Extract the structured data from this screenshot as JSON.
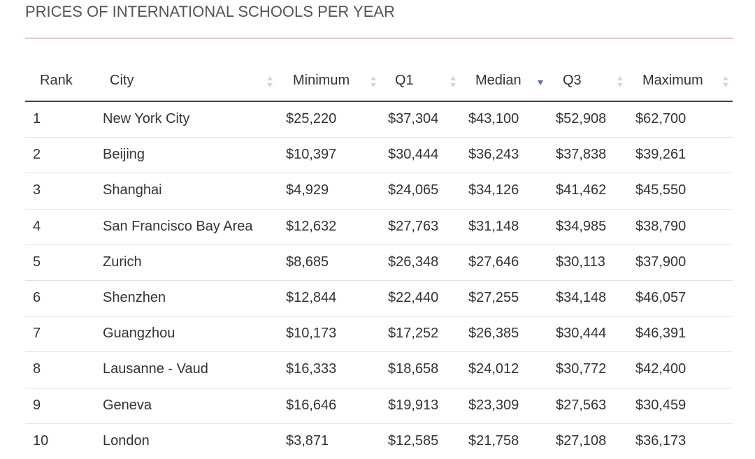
{
  "title": "PRICES OF INTERNATIONAL SCHOOLS PER YEAR",
  "colors": {
    "title_rule": "#e0577f",
    "header_rule": "#444444",
    "row_divider": "#e2e2e2",
    "sort_inactive": "#d6d6d6",
    "sort_active": "#5b6fb3"
  },
  "sort": {
    "column": "Median",
    "direction": "descending"
  },
  "chart_data": {
    "type": "table",
    "title": "PRICES OF INTERNATIONAL SCHOOLS PER YEAR",
    "columns": [
      "Rank",
      "City",
      "Minimum",
      "Q1",
      "Median",
      "Q3",
      "Maximum"
    ],
    "rows": [
      [
        "1",
        "New York City",
        "$25,220",
        "$37,304",
        "$43,100",
        "$52,908",
        "$62,700"
      ],
      [
        "2",
        "Beijing",
        "$10,397",
        "$30,444",
        "$36,243",
        "$37,838",
        "$39,261"
      ],
      [
        "3",
        "Shanghai",
        "$4,929",
        "$24,065",
        "$34,126",
        "$41,462",
        "$45,550"
      ],
      [
        "4",
        "San Francisco Bay Area",
        "$12,632",
        "$27,763",
        "$31,148",
        "$34,985",
        "$38,790"
      ],
      [
        "5",
        "Zurich",
        "$8,685",
        "$26,348",
        "$27,646",
        "$30,113",
        "$37,900"
      ],
      [
        "6",
        "Shenzhen",
        "$12,844",
        "$22,440",
        "$27,255",
        "$34,148",
        "$46,057"
      ],
      [
        "7",
        "Guangzhou",
        "$10,173",
        "$17,252",
        "$26,385",
        "$30,444",
        "$46,391"
      ],
      [
        "8",
        "Lausanne - Vaud",
        "$16,333",
        "$18,658",
        "$24,012",
        "$30,772",
        "$42,400"
      ],
      [
        "9",
        "Geneva",
        "$16,646",
        "$19,913",
        "$23,309",
        "$27,563",
        "$30,459"
      ],
      [
        "10",
        "London",
        "$3,871",
        "$12,585",
        "$21,758",
        "$27,108",
        "$36,173"
      ]
    ]
  }
}
